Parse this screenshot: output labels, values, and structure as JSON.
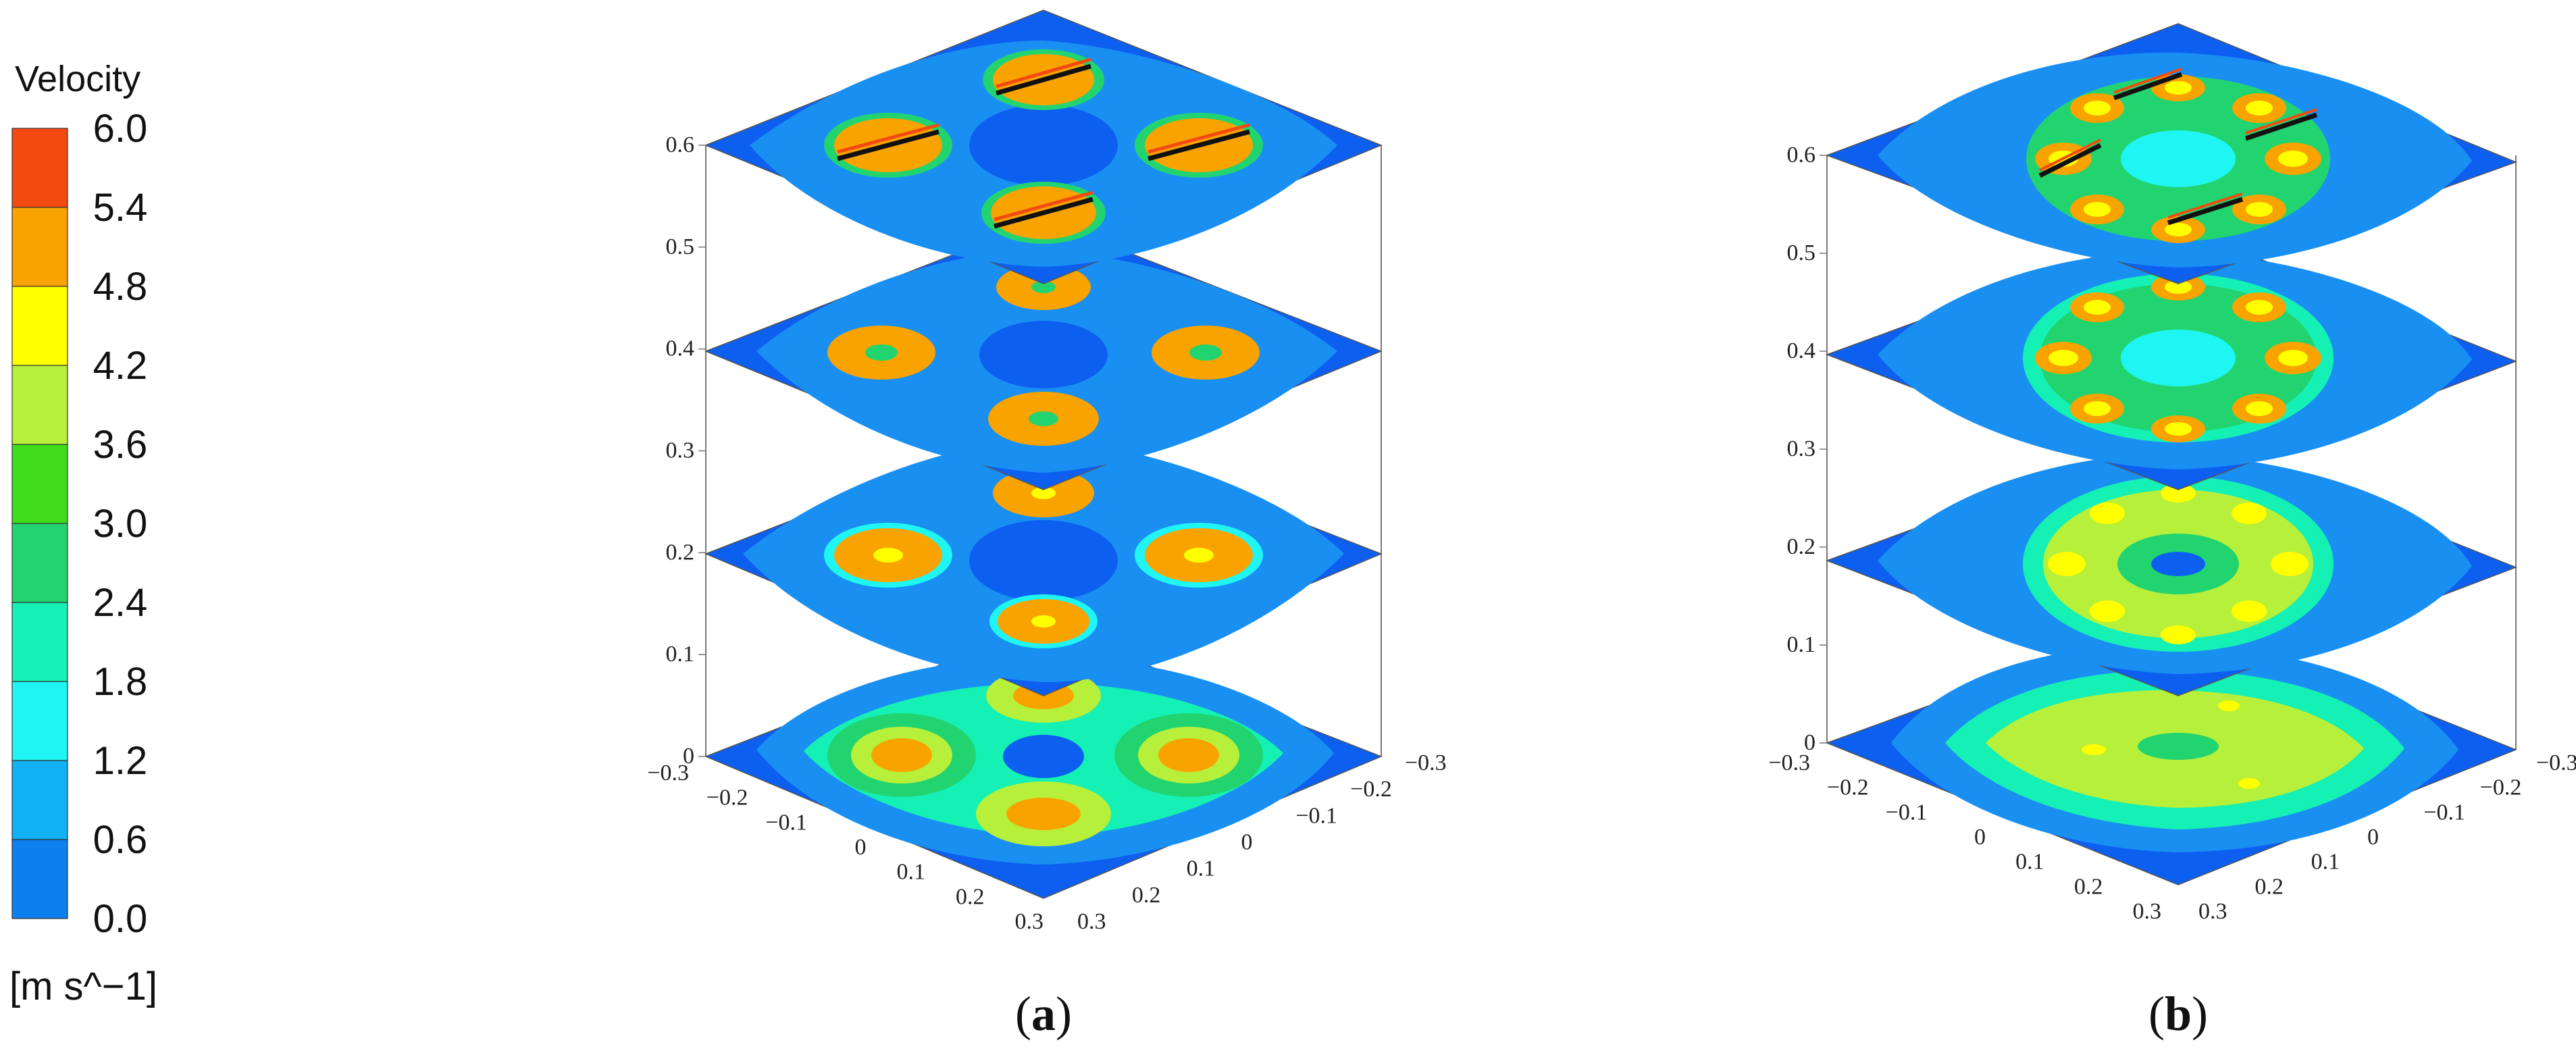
{
  "legend": {
    "title": "Velocity",
    "unit": "[m s^−1]",
    "ticks": [
      "6.0",
      "5.4",
      "4.8",
      "4.2",
      "3.6",
      "3.0",
      "2.4",
      "1.8",
      "1.2",
      "0.6",
      "0.0"
    ],
    "colors_top_to_bottom": [
      "#f24a10",
      "#f9a300",
      "#ffff00",
      "#b7f03a",
      "#3fdd1c",
      "#22d470",
      "#15f0b5",
      "#1ff6f3",
      "#12b0f4",
      "#0d7fef"
    ]
  },
  "panels": [
    {
      "label_open": "(",
      "label_letter": "a",
      "label_close": ")",
      "z_ticks": [
        "0",
        "0.1",
        "0.2",
        "0.3",
        "0.4",
        "0.5",
        "0.6"
      ],
      "x_ticks_left": [
        "−0.3",
        "−0.2",
        "−0.1",
        "0",
        "0.1",
        "0.2",
        "0.3"
      ],
      "x_ticks_right": [
        "0.3",
        "0.2",
        "0.1",
        "0",
        "−0.1",
        "−0.2",
        "−0.3"
      ]
    },
    {
      "label_open": "(",
      "label_letter": "b",
      "label_close": ")",
      "z_ticks": [
        "0",
        "0.1",
        "0.2",
        "0.3",
        "0.4",
        "0.5",
        "0.6"
      ],
      "x_ticks_left": [
        "−0.3",
        "−0.2",
        "−0.1",
        "0",
        "0.1",
        "0.2",
        "0.3"
      ],
      "x_ticks_right": [
        "0.3",
        "0.2",
        "0.1",
        "0",
        "−0.1",
        "−0.2",
        "−0.3"
      ]
    }
  ],
  "chart_data": [
    {
      "type": "heatmap",
      "panel": "a",
      "description_kind": "stacked horizontal velocity contour planes",
      "plane_heights": [
        0,
        0.2,
        0.4,
        0.6
      ],
      "z_range": [
        0,
        0.6
      ],
      "x_range": [
        -0.3,
        0.3
      ],
      "y_range": [
        -0.3,
        0.3
      ],
      "color_range": [
        0.0,
        6.0
      ],
      "grid": false
    },
    {
      "type": "heatmap",
      "panel": "b",
      "description_kind": "stacked horizontal velocity contour planes",
      "plane_heights": [
        0,
        0.2,
        0.4,
        0.6
      ],
      "z_range": [
        0,
        0.6
      ],
      "x_range": [
        -0.3,
        0.3
      ],
      "y_range": [
        -0.3,
        0.3
      ],
      "color_range": [
        0.0,
        6.0
      ],
      "grid": false
    }
  ]
}
